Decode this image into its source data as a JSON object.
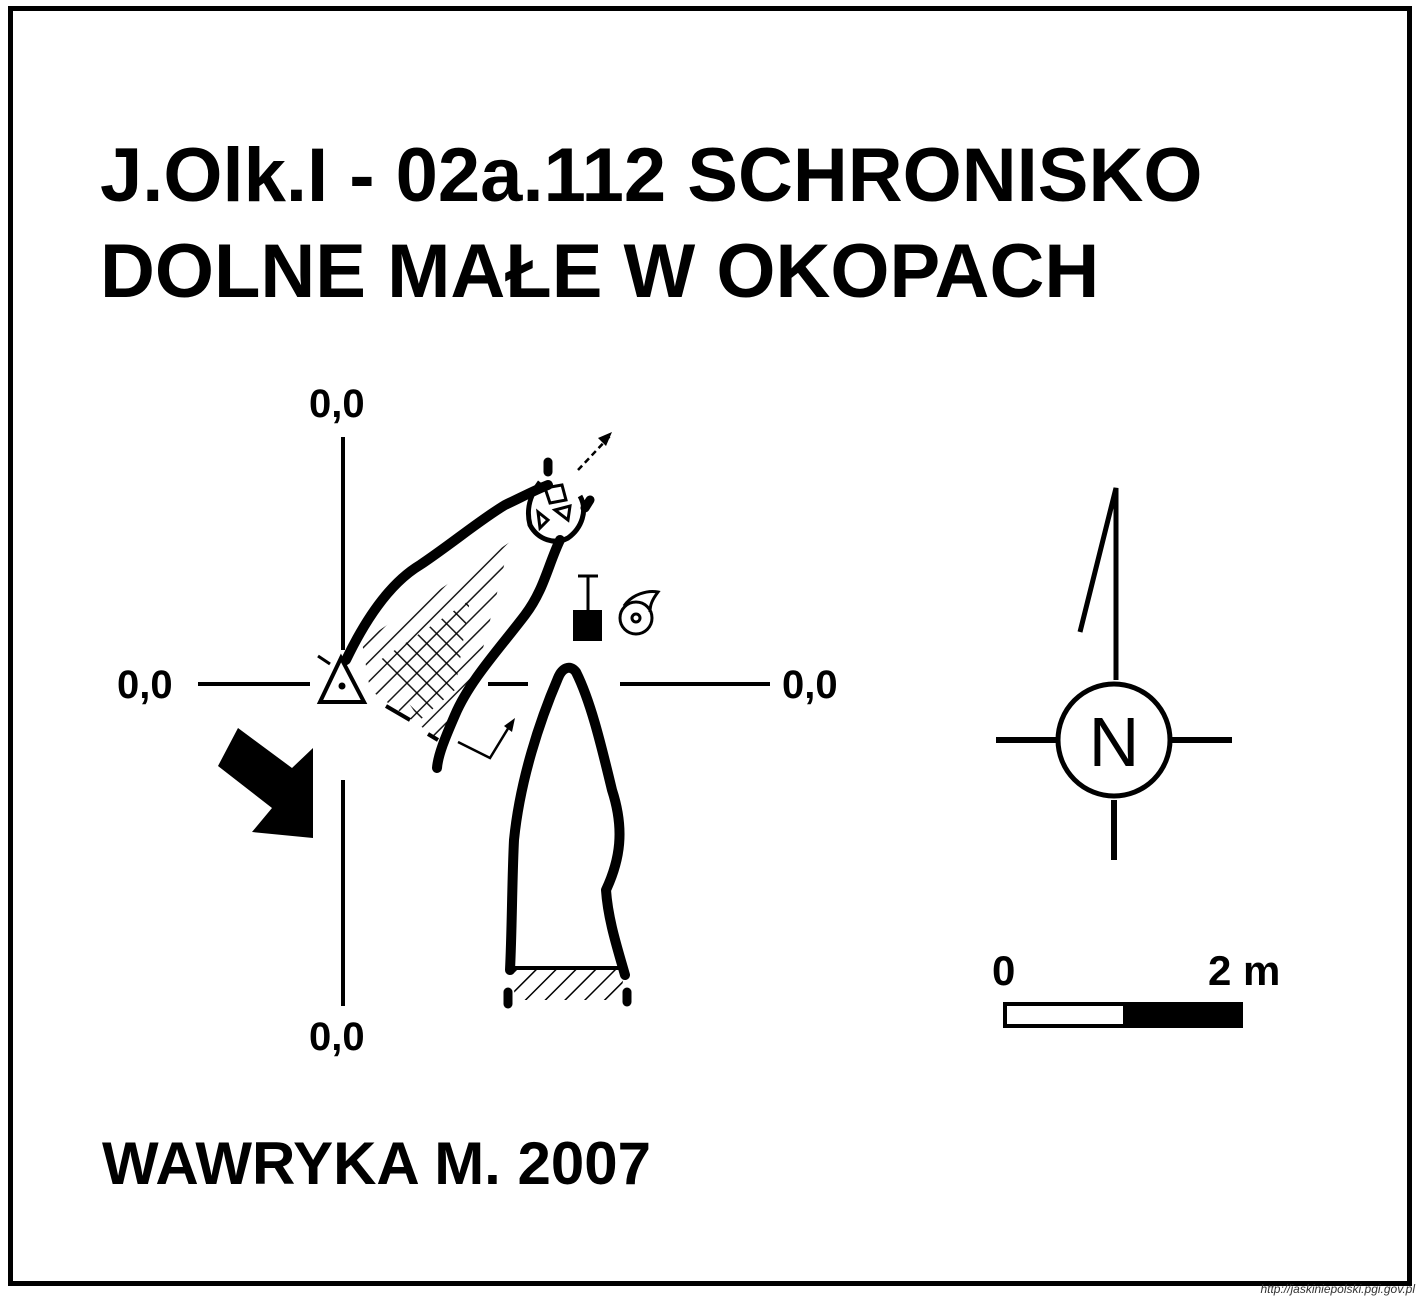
{
  "title": {
    "line1": "J.Olk.I - 02a.112  SCHRONISKO",
    "line2": "DOLNE MAŁE W OKOPACH"
  },
  "coordinates": {
    "top": "0,0",
    "left": "0,0",
    "right": "0,0",
    "bottom": "0,0"
  },
  "compass": {
    "north_label": "N"
  },
  "scale_bar": {
    "start_label": "0",
    "end_label": "2 m"
  },
  "author": "WAWRYKA M. 2007",
  "source_url": "http://jaskiniepolski.pgi.gov.pl",
  "colors": {
    "ink": "#000000",
    "paper": "#ffffff"
  }
}
